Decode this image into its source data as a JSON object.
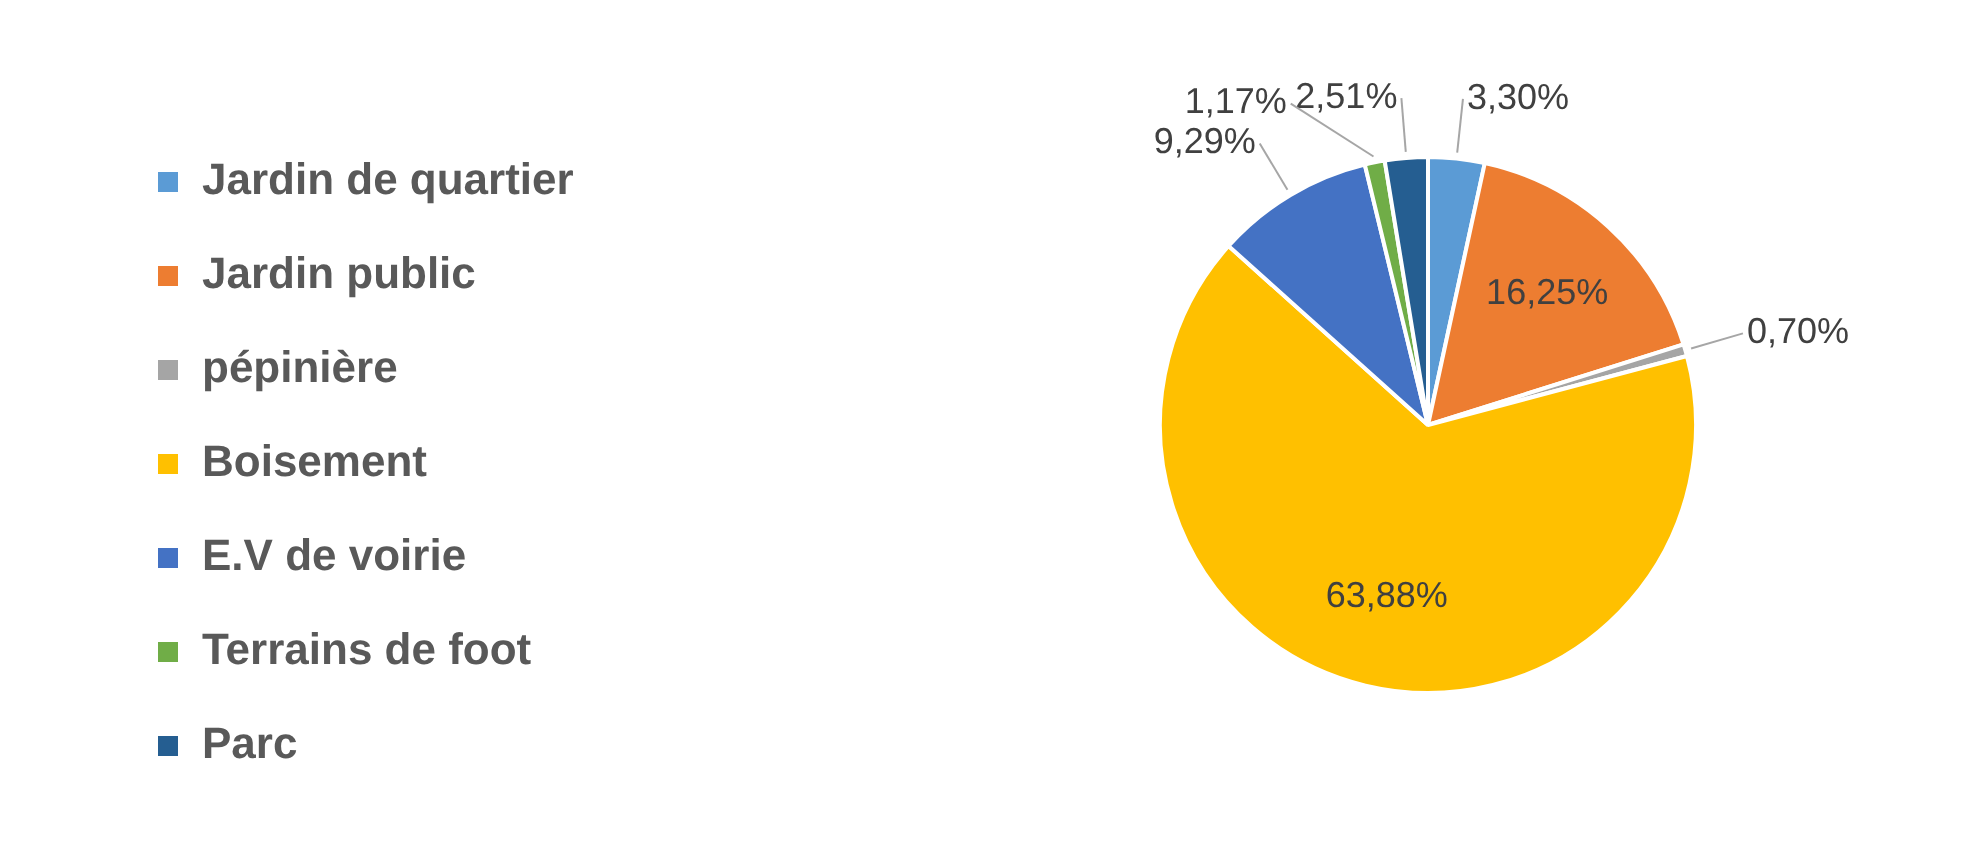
{
  "chart_data": {
    "type": "pie",
    "categories": [
      "Jardin de quartier",
      "Jardin public",
      "pépinière",
      "Boisement",
      "E.V de voirie",
      "Terrains de foot",
      "Parc"
    ],
    "values": [
      3.3,
      16.25,
      0.7,
      63.88,
      9.29,
      1.17,
      2.51
    ],
    "colors": [
      "#5b9bd5",
      "#ed7d31",
      "#a5a5a5",
      "#ffc000",
      "#4472c4",
      "#70ad47",
      "#255e91"
    ],
    "value_labels": [
      "3,30%",
      "16,25%",
      "0,70%",
      "63,88%",
      "9,29%",
      "1,17%",
      "2,51%"
    ],
    "legend": "left"
  }
}
